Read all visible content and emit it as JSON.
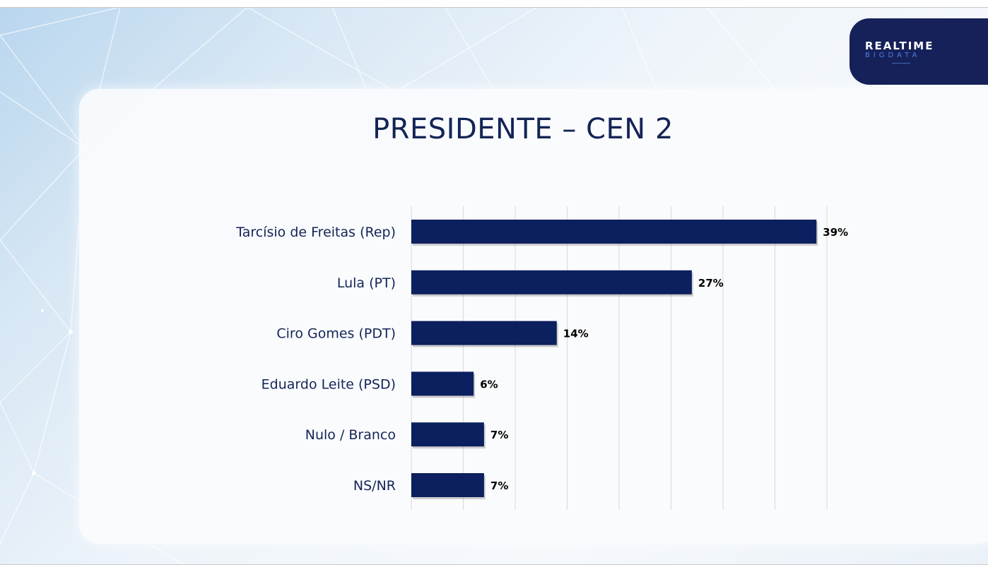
{
  "logo": {
    "line1": "REALTIME",
    "line2": "BIGDATA"
  },
  "chart_data": {
    "type": "bar",
    "orientation": "horizontal",
    "title": "PRESIDENTE – CEN 2",
    "categories": [
      "Tarcísio de Freitas (Rep)",
      "Lula (PT)",
      "Ciro Gomes (PDT)",
      "Eduardo Leite (PSD)",
      "Nulo / Branco",
      "NS/NR"
    ],
    "values": [
      39,
      27,
      14,
      6,
      7,
      7
    ],
    "value_labels": [
      "39%",
      "27%",
      "14%",
      "6%",
      "7%",
      "7%"
    ],
    "xlim": [
      0,
      40
    ],
    "grid": true,
    "colors": {
      "bar": "#0c1f5e",
      "label": "#142456",
      "value": "#000000",
      "grid": "#d9d9d9"
    }
  }
}
